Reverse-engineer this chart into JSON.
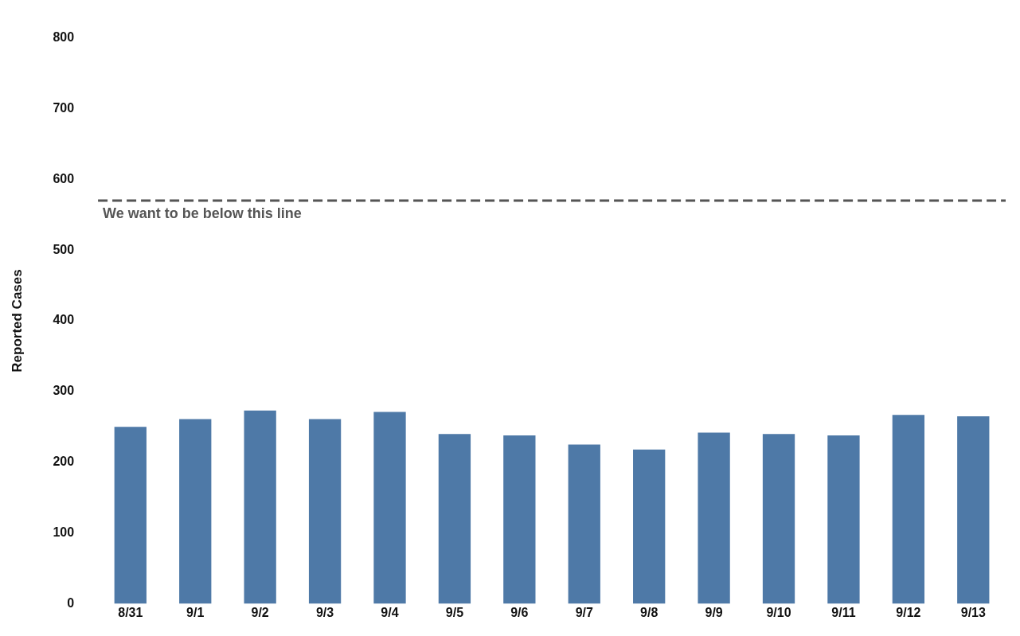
{
  "chart_data": {
    "type": "bar",
    "ylabel": "Reported Cases",
    "categories": [
      "8/31",
      "9/1",
      "9/2",
      "9/3",
      "9/4",
      "9/5",
      "9/6",
      "9/7",
      "9/8",
      "9/9",
      "9/10",
      "9/11",
      "9/12",
      "9/13"
    ],
    "values": [
      250,
      261,
      273,
      261,
      271,
      240,
      238,
      225,
      218,
      242,
      240,
      238,
      267,
      265
    ],
    "color": "#4e79a7",
    "ylim": [
      0,
      800
    ],
    "yticks": [
      0,
      100,
      200,
      300,
      400,
      500,
      600,
      700,
      800
    ],
    "grid": false,
    "ref_lines": [
      {
        "axis": "y",
        "value": 570,
        "label": "We want to be below this line",
        "color": "#555555",
        "line_style": "dashed"
      }
    ]
  }
}
